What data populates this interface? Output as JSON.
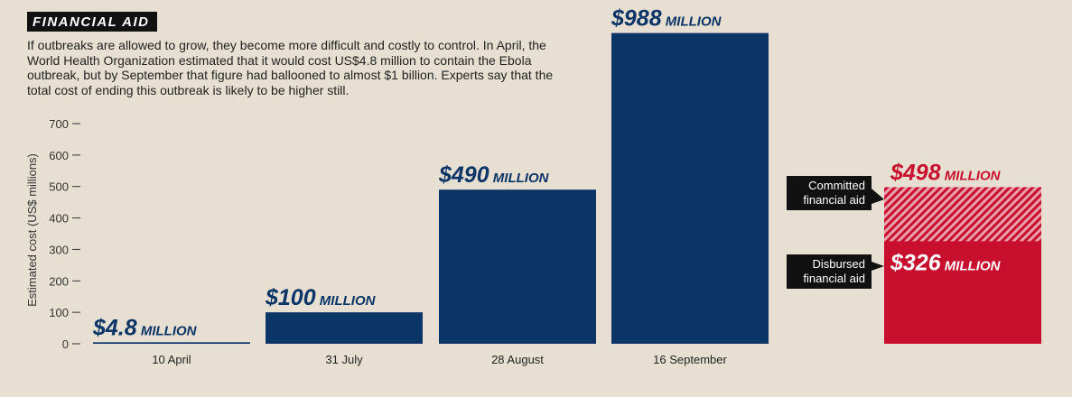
{
  "chart_data": {
    "type": "bar",
    "title": "FINANCIAL AID",
    "subtitle": "If outbreaks are allowed to grow, they become more difficult and costly to control. In April, the World Health Organization estimated that it would cost US$4.8 million to contain the Ebola outbreak, but by September that figure had ballooned to almost $1 billion. Experts say that the total cost of ending this outbreak is likely to be higher still.",
    "y_label": "Estimated cost (US$ millions)",
    "categories": [
      "10 April",
      "31 July",
      "28 August",
      "16 September"
    ],
    "values": [
      4.8,
      100,
      490,
      988
    ],
    "value_labels": [
      "$4.8 MILLION",
      "$100 MILLION",
      "$490 MILLION",
      "$988 MILLION"
    ],
    "color": "#0b3567",
    "ylim": [
      0,
      700
    ],
    "yticks": [
      0,
      100,
      200,
      300,
      400,
      500,
      600,
      700
    ],
    "aid": {
      "color": "#c8102e",
      "committed": {
        "name": "Committed financial aid",
        "value": 498,
        "value_label": "$498 MILLION"
      },
      "disbursed": {
        "name": "Disbursed financial aid",
        "value": 326,
        "value_label": "$326 MILLION"
      }
    }
  }
}
